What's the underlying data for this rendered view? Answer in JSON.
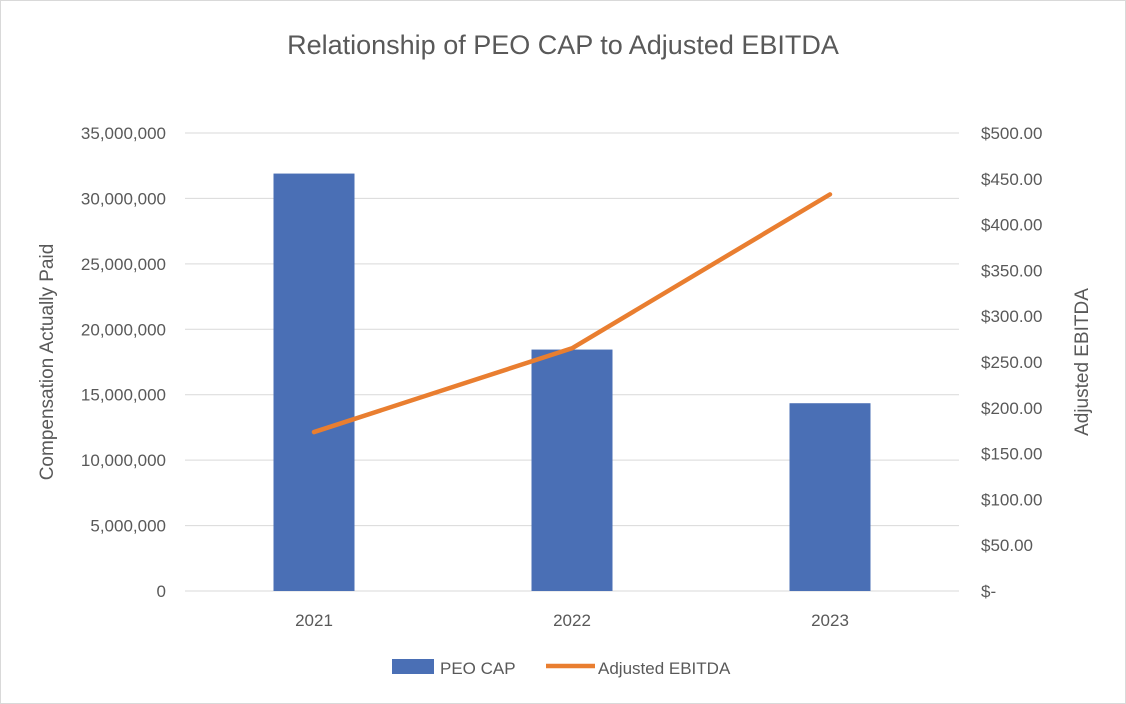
{
  "chart_data": {
    "type": "bar",
    "title": "Relationship of PEO CAP to Adjusted EBITDA",
    "categories": [
      "2021",
      "2022",
      "2023"
    ],
    "series": [
      {
        "name": "PEO CAP",
        "type": "bar",
        "axis": "left",
        "color": "#4a6fb5",
        "values": [
          31900000,
          18450000,
          14350000
        ]
      },
      {
        "name": "Adjusted EBITDA",
        "type": "line",
        "axis": "right",
        "color": "#e97e30",
        "values": [
          173.5,
          265.0,
          433.0
        ]
      }
    ],
    "y_left": {
      "label": "Compensation Actually Paid",
      "min": 0,
      "max": 35000000,
      "ticks": [
        0,
        5000000,
        10000000,
        15000000,
        20000000,
        25000000,
        30000000,
        35000000
      ],
      "tick_labels": [
        "0",
        "5,000,000",
        "10,000,000",
        "15,000,000",
        "20,000,000",
        "25,000,000",
        "30,000,000",
        "35,000,000"
      ]
    },
    "y_right": {
      "label": "Adjusted EBITDA",
      "min": 0,
      "max": 500,
      "ticks": [
        0,
        50,
        100,
        150,
        200,
        250,
        300,
        350,
        400,
        450,
        500
      ],
      "tick_labels": [
        "$-",
        "$50.00",
        "$100.00",
        "$150.00",
        "$200.00",
        "$250.00",
        "$300.00",
        "$350.00",
        "$400.00",
        "$450.00",
        "$500.00"
      ]
    },
    "grid": true,
    "legend": "bottom",
    "gridline_color": "#d9d9d9"
  }
}
